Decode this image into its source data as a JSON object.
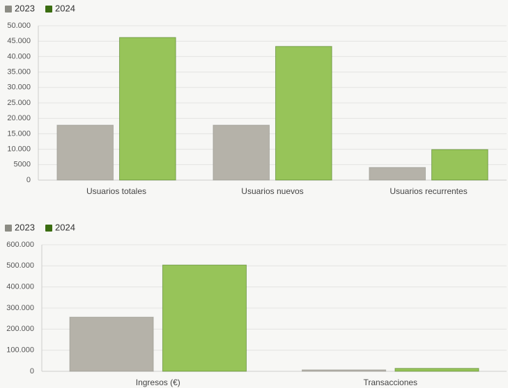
{
  "chart_data": [
    {
      "type": "bar",
      "categories": [
        "Usuarios totales",
        "Usuarios nuevos",
        "Usuarios recurrentes"
      ],
      "series": [
        {
          "name": "2023",
          "color": "#b5b2a9",
          "legend_color": "#8c8c84",
          "values": [
            17800,
            17800,
            4100
          ]
        },
        {
          "name": "2024",
          "color": "#97c459",
          "legend_color": "#3b6d11",
          "values": [
            46200,
            43300,
            9900
          ]
        }
      ],
      "ylim": [
        0,
        50000
      ],
      "yticks": [
        0,
        5000,
        {
          "value": 10000,
          "label": "10.000"
        },
        {
          "value": 15000,
          "label": "15.000"
        },
        {
          "value": 20000,
          "label": "20.000"
        },
        {
          "value": 25000,
          "label": "25.000"
        },
        {
          "value": 30000,
          "label": "30.000"
        },
        {
          "value": 35000,
          "label": "35.000"
        },
        {
          "value": 40000,
          "label": "40.000"
        },
        {
          "value": 45000,
          "label": "45.000"
        },
        {
          "value": 50000,
          "label": "50.000"
        }
      ],
      "grid": true,
      "legend": "top-left"
    },
    {
      "type": "bar",
      "categories": [
        "Ingresos (€)",
        "Transacciones"
      ],
      "series": [
        {
          "name": "2023",
          "color": "#b5b2a9",
          "legend_color": "#8c8c84",
          "values": [
            257000,
            7000
          ]
        },
        {
          "name": "2024",
          "color": "#97c459",
          "legend_color": "#3b6d11",
          "values": [
            504000,
            14000
          ]
        }
      ],
      "ylim": [
        0,
        600000
      ],
      "yticks": [
        0,
        {
          "value": 100000,
          "label": "100.000"
        },
        {
          "value": 200000,
          "label": "200.000"
        },
        {
          "value": 300000,
          "label": "300.000"
        },
        {
          "value": 400000,
          "label": "400.000"
        },
        {
          "value": 500000,
          "label": "500.000"
        },
        {
          "value": 600000,
          "label": "600.000"
        }
      ],
      "grid": true,
      "legend": "top-left"
    }
  ]
}
